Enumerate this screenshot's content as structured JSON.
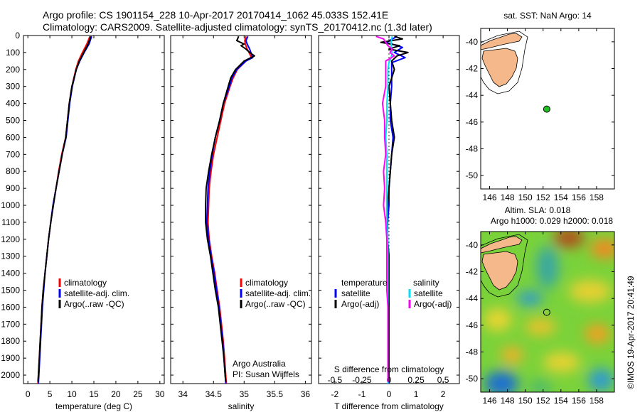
{
  "title": {
    "line1": "Argo profile: CS 1901154_228 10-Apr-2017 20170414_1062 45.033S 152.41E",
    "line2": "Climatology: CARS2009. Satellite-adjusted climatology: synTS_20170412.nc (1.3d later)"
  },
  "colors": {
    "climatology": "#ff0000",
    "satellite": "#0000ff",
    "argo": "#000000",
    "salinity_satellite": "#00e0ff",
    "argo_adj_salinity": "#ff00ff",
    "land": "#f5b88a",
    "float_marker": "#22c022"
  },
  "chart_data": [
    {
      "id": "temperature",
      "type": "line",
      "xlabel": "temperature (deg C)",
      "ylabel": "",
      "xlim": [
        -1,
        31
      ],
      "ylim": [
        2050,
        0
      ],
      "xticks": [
        0,
        5,
        10,
        15,
        20,
        25,
        30
      ],
      "yticks": [
        0,
        100,
        200,
        300,
        400,
        500,
        600,
        700,
        800,
        900,
        1000,
        1100,
        1200,
        1300,
        1400,
        1500,
        1600,
        1700,
        1800,
        1900,
        2000
      ],
      "legend": [
        "climatology",
        "satellite-adj. clim.",
        "Argo(..raw -QC)"
      ],
      "legend_position": "lower-right",
      "series": [
        {
          "name": "climatology",
          "color": "#ff0000",
          "depth": [
            5,
            50,
            100,
            150,
            200,
            300,
            400,
            500,
            600,
            700,
            800,
            900,
            1000,
            1100,
            1200,
            1300,
            1400,
            1500,
            1600,
            1700,
            1800,
            1900,
            2000,
            2050
          ],
          "values": [
            14.1,
            13.4,
            12.4,
            11.5,
            10.9,
            10.0,
            9.4,
            9.0,
            8.6,
            7.7,
            7.0,
            6.4,
            5.7,
            5.2,
            4.7,
            4.3,
            3.9,
            3.5,
            3.2,
            3.0,
            2.8,
            2.6,
            2.4,
            2.3
          ]
        },
        {
          "name": "satellite-adj. clim.",
          "color": "#0000ff",
          "depth": [
            5,
            50,
            100,
            150,
            200,
            300,
            400,
            500,
            600,
            700,
            800,
            900,
            1000,
            1100,
            1200,
            1300,
            1400,
            1500,
            1600,
            1700,
            1800,
            1900,
            2000,
            2050
          ],
          "values": [
            14.5,
            13.9,
            12.8,
            11.8,
            11.0,
            10.1,
            9.5,
            9.1,
            8.7,
            7.8,
            7.1,
            6.4,
            5.7,
            5.2,
            4.7,
            4.3,
            3.9,
            3.6,
            3.3,
            3.1,
            2.9,
            2.7,
            2.5,
            2.4
          ]
        },
        {
          "name": "Argo(..raw -QC)",
          "color": "#000000",
          "depth": [
            5,
            50,
            100,
            150,
            200,
            300,
            400,
            500,
            600,
            700,
            800,
            900,
            1000,
            1100,
            1200,
            1300,
            1400,
            1500,
            1600,
            1700,
            1800,
            1900,
            2000,
            2040
          ],
          "values": [
            14.3,
            13.7,
            12.7,
            11.7,
            11.0,
            10.0,
            9.4,
            9.0,
            8.6,
            7.8,
            7.1,
            6.4,
            5.8,
            5.2,
            4.7,
            4.3,
            3.9,
            3.5,
            3.2,
            3.0,
            2.8,
            2.6,
            2.4,
            2.3
          ]
        }
      ]
    },
    {
      "id": "salinity",
      "type": "line",
      "xlabel": "salinity",
      "xlim": [
        33.8,
        36.1
      ],
      "ylim": [
        2050,
        0
      ],
      "xticks": [
        34,
        34.5,
        35,
        35.5,
        36
      ],
      "xtick_labels": [
        "34",
        "34.5",
        "35",
        "35.5",
        "36"
      ],
      "legend": [
        "climatology",
        "satellite-adj. clim.",
        "Argo(..raw -QC)"
      ],
      "legend_position": "middle-right",
      "annotation": [
        "Argo Australia",
        "PI: Susan Wijffels"
      ],
      "series": [
        {
          "name": "climatology",
          "color": "#ff0000",
          "depth": [
            5,
            30,
            50,
            80,
            100,
            130,
            150,
            200,
            250,
            300,
            400,
            500,
            600,
            700,
            800,
            900,
            1000,
            1100,
            1200,
            1300,
            1400,
            1500,
            1600,
            1700,
            1800,
            1900,
            2000,
            2050
          ],
          "values": [
            35.03,
            35.01,
            35.02,
            35.05,
            35.08,
            35.12,
            35.03,
            34.89,
            34.82,
            34.77,
            34.68,
            34.62,
            34.56,
            34.5,
            34.46,
            34.43,
            34.42,
            34.41,
            34.43,
            34.47,
            34.52,
            34.56,
            34.6,
            34.63,
            34.66,
            34.68,
            34.7,
            34.71
          ]
        },
        {
          "name": "satellite-adj. clim.",
          "color": "#0000ff",
          "depth": [
            5,
            30,
            50,
            80,
            100,
            130,
            150,
            200,
            250,
            300,
            400,
            500,
            600,
            700,
            800,
            900,
            1000,
            1100,
            1200,
            1300,
            1400,
            1500,
            1600,
            1700,
            1800,
            1900,
            2000,
            2050
          ],
          "values": [
            35.06,
            35.03,
            35.05,
            35.09,
            35.11,
            35.14,
            35.03,
            34.88,
            34.8,
            34.76,
            34.66,
            34.6,
            34.53,
            34.48,
            34.44,
            34.41,
            34.4,
            34.39,
            34.42,
            34.46,
            34.51,
            34.55,
            34.59,
            34.62,
            34.65,
            34.67,
            34.69,
            34.7
          ]
        },
        {
          "name": "Argo(..raw -QC)",
          "color": "#000000",
          "depth": [
            5,
            30,
            50,
            60,
            80,
            100,
            120,
            150,
            200,
            250,
            300,
            400,
            500,
            600,
            700,
            800,
            900,
            1000,
            1100,
            1200,
            1300,
            1400,
            1500,
            1600,
            1700,
            1800,
            1900,
            2000,
            2040
          ],
          "values": [
            34.91,
            34.88,
            35.0,
            34.95,
            35.03,
            35.09,
            35.17,
            35.0,
            34.86,
            34.78,
            34.74,
            34.66,
            34.6,
            34.53,
            34.47,
            34.42,
            34.38,
            34.37,
            34.37,
            34.4,
            34.45,
            34.49,
            34.53,
            34.58,
            34.61,
            34.64,
            34.67,
            34.69,
            34.7
          ]
        }
      ]
    },
    {
      "id": "difference",
      "type": "line",
      "xlabel": "T difference from climatology",
      "xlabel_top": "S difference from climatology",
      "xlim": [
        -2.6,
        2.6
      ],
      "ylim": [
        2050,
        0
      ],
      "xticks": [
        -2,
        -1,
        0,
        1,
        2
      ],
      "xtick_labels": [
        "-2",
        "-1",
        "0",
        "1",
        "2"
      ],
      "sticks": [
        -0.5,
        -0.25,
        0,
        0.25,
        0.5
      ],
      "stick_labels": [
        "-0.5",
        "-0.25",
        "0",
        "0.25",
        "0.5"
      ],
      "legend": {
        "temperature_title": "temperature",
        "salinity_title": "salinity",
        "temperature_items": [
          "satellite",
          "Argo(-adj)"
        ],
        "salinity_items": [
          "satellite",
          "Argo(-adj)"
        ]
      },
      "series": [
        {
          "name": "temperature satellite",
          "color": "#0000ff",
          "depth": [
            5,
            40,
            70,
            100,
            130,
            160,
            200,
            300,
            400,
            500,
            600,
            700,
            800,
            900,
            1000,
            1100,
            1200,
            1300,
            1400,
            1500,
            1600,
            1700,
            1800,
            1900,
            2000,
            2050
          ],
          "values": [
            0.3,
            -0.1,
            0.5,
            0.2,
            0.6,
            0.1,
            0.1,
            0.1,
            0.05,
            0.05,
            0.15,
            0.1,
            0.05,
            0.0,
            0.0,
            -0.05,
            -0.05,
            0.0,
            0.0,
            0.0,
            0.0,
            0.0,
            0.0,
            0.0,
            0.0,
            0.0
          ]
        },
        {
          "name": "temperature Argo(-adj)",
          "color": "#000000",
          "depth": [
            5,
            20,
            40,
            60,
            80,
            100,
            120,
            150,
            200,
            250,
            300,
            400,
            500,
            600,
            700,
            800,
            900,
            1000,
            1100,
            1200,
            1300,
            1400,
            1500,
            1600,
            1700,
            1800,
            1900,
            2000,
            2040
          ],
          "values": [
            0.2,
            0.5,
            -0.3,
            0.4,
            0.0,
            0.7,
            0.3,
            0.1,
            0.2,
            0.1,
            0.0,
            0.05,
            0.1,
            0.2,
            0.1,
            0.05,
            0.0,
            -0.05,
            -0.1,
            -0.05,
            0.0,
            0.0,
            0.0,
            0.0,
            0.0,
            0.0,
            0.0,
            0.0,
            0.0
          ]
        },
        {
          "name": "salinity satellite",
          "color": "#00e0ff",
          "depth": [
            5,
            40,
            70,
            100,
            130,
            160,
            200,
            300,
            400,
            500,
            600,
            700,
            800,
            900,
            1000,
            1100,
            1200,
            1300,
            1400,
            1500,
            1600,
            1700,
            1800,
            1900,
            2000,
            2050
          ],
          "values": [
            0.03,
            0.02,
            0.02,
            0.03,
            0.02,
            0.0,
            -0.01,
            -0.01,
            -0.02,
            -0.02,
            -0.03,
            -0.02,
            -0.02,
            -0.02,
            -0.02,
            -0.02,
            -0.01,
            -0.01,
            -0.01,
            -0.01,
            -0.01,
            -0.01,
            -0.01,
            -0.01,
            -0.01,
            -0.01
          ]
        },
        {
          "name": "salinity Argo(-adj)",
          "color": "#ff00ff",
          "depth": [
            5,
            20,
            40,
            60,
            80,
            100,
            120,
            150,
            200,
            300,
            400,
            500,
            600,
            700,
            800,
            900,
            1000,
            1100,
            1200,
            1300,
            1400,
            1500,
            1600,
            1700,
            1800,
            1900,
            2000,
            2040
          ],
          "values": [
            -0.12,
            -0.05,
            -0.03,
            -0.01,
            0.03,
            0.01,
            0.05,
            -0.03,
            -0.03,
            -0.03,
            -0.06,
            -0.04,
            -0.04,
            -0.03,
            -0.05,
            -0.04,
            -0.05,
            -0.03,
            -0.02,
            -0.02,
            -0.02,
            -0.02,
            -0.01,
            -0.01,
            -0.01,
            -0.01,
            -0.01,
            -0.01
          ]
        }
      ]
    },
    {
      "id": "map_sst",
      "type": "scatter",
      "title": "sat. SST: NaN Argo: 14",
      "xlim": [
        145,
        160
      ],
      "ylim": [
        -51,
        -39
      ],
      "xticks": [
        146,
        148,
        150,
        152,
        154,
        156,
        158
      ],
      "yticks": [
        -40,
        -42,
        -44,
        -46,
        -48,
        -50
      ],
      "float_position": {
        "lon": 152.41,
        "lat": -45.033
      }
    },
    {
      "id": "map_sla",
      "type": "heatmap",
      "title_line1": "Altim. SLA: 0.018",
      "title_line2": "Argo h1000: 0.029 h2000: 0.018",
      "xlim": [
        145,
        160
      ],
      "ylim": [
        -51,
        -39
      ],
      "xticks": [
        146,
        148,
        150,
        152,
        154,
        156,
        158
      ],
      "yticks": [
        -40,
        -42,
        -44,
        -46,
        -48,
        -50
      ],
      "float_position": {
        "lon": 152.41,
        "lat": -45.033
      }
    }
  ],
  "credit": "©IMOS 19-Apr-2017 20:41:49"
}
